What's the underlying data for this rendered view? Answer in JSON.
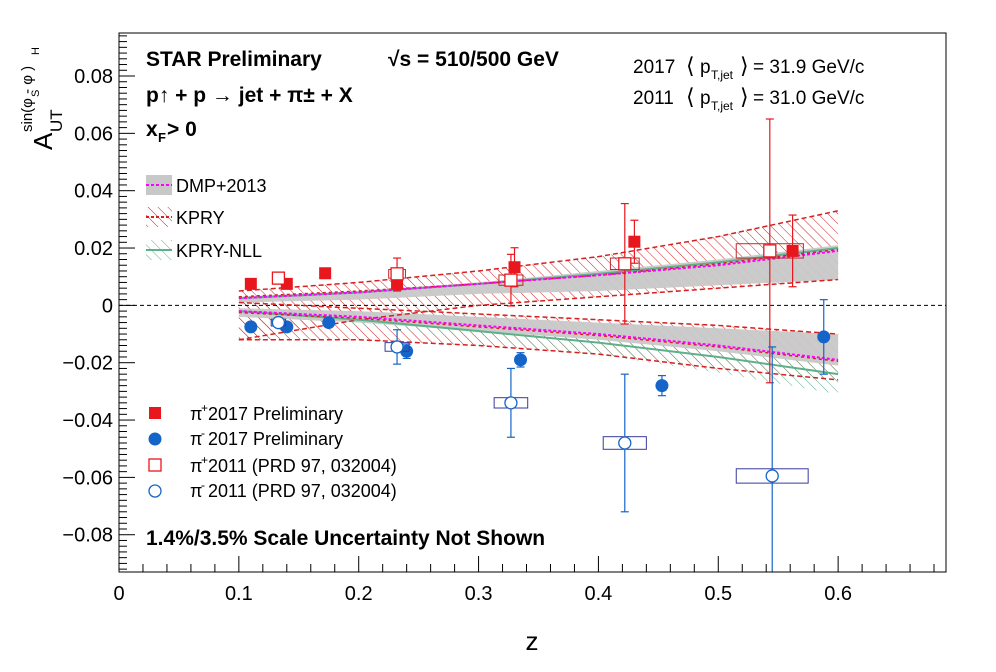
{
  "chart_data": {
    "type": "scatter",
    "xlabel": "z",
    "ylabel_main": "A",
    "ylabel_sub": "UT",
    "ylabel_sup": "sin(φ  - φ )",
    "ylabel_sup_s": "S",
    "ylabel_sup_h": "H",
    "xlim": [
      0,
      0.69
    ],
    "ylim": [
      -0.093,
      0.095
    ],
    "x_ticks": [
      0,
      0.1,
      0.2,
      0.3,
      0.4,
      0.5,
      0.6
    ],
    "x_tick_labels": [
      "0",
      "0.1",
      "0.2",
      "0.3",
      "0.4",
      "0.5",
      "0.6"
    ],
    "y_ticks": [
      -0.08,
      -0.06,
      -0.04,
      -0.02,
      0,
      0.02,
      0.04,
      0.06,
      0.08
    ],
    "y_tick_labels": [
      "−0.08",
      "−0.06",
      "−0.04",
      "−0.02",
      "0",
      "0.02",
      "0.04",
      "0.06",
      "0.08"
    ],
    "annotations": {
      "star": "STAR Preliminary",
      "sqrt_s": "√s = 510/500 GeV",
      "reaction": "p↑ + p → jet + π± + X",
      "xf": "x",
      "xf_sub": "F",
      "xf_rest": " > 0",
      "pt2017_year": "2017",
      "pt2017_value": "=  31.9 GeV/c",
      "pt2011_year": "2011",
      "pt2011_value": "=  31.0 GeV/c",
      "pt_symbol": "p",
      "pt_sub": "T,jet",
      "scale_note": "1.4%/3.5% Scale Uncertainty Not Shown"
    },
    "theory": [
      {
        "name": "DMP+2013",
        "color": "#ff00ff",
        "fill": "#c8c8c8"
      },
      {
        "name": "KPRY",
        "color": "#d42020"
      },
      {
        "name": "KPRY-NLL",
        "color": "#5cb08a"
      }
    ],
    "theory_bands": {
      "x": [
        0.1,
        0.2,
        0.3,
        0.4,
        0.5,
        0.6
      ],
      "pos": {
        "dmp": [
          0.0025,
          0.0045,
          0.0075,
          0.0105,
          0.014,
          0.019
        ],
        "dmp_lo": [
          0.001,
          0.002,
          0.004,
          0.005,
          0.007,
          0.009
        ],
        "dmp_hi": [
          0.003,
          0.005,
          0.008,
          0.012,
          0.016,
          0.021
        ],
        "kpry": [
          0.003,
          0.005,
          0.0075,
          0.0105,
          0.0145,
          0.0195
        ],
        "kpry_lo": [
          -0.012,
          -0.005,
          0.0,
          0.003,
          0.006,
          0.009
        ],
        "kpry_hi": [
          0.005,
          0.008,
          0.012,
          0.017,
          0.024,
          0.033
        ],
        "nll": [
          0.0025,
          0.0045,
          0.0075,
          0.011,
          0.015,
          0.02
        ]
      },
      "neg": {
        "dmp": [
          -0.002,
          -0.004,
          -0.007,
          -0.01,
          -0.014,
          -0.019
        ],
        "dmp_lo": [
          -0.004,
          -0.006,
          -0.009,
          -0.012,
          -0.016,
          -0.021
        ],
        "dmp_hi": [
          -0.001,
          -0.002,
          -0.004,
          -0.006,
          -0.008,
          -0.01
        ],
        "kpry": [
          -0.0025,
          -0.0045,
          -0.0075,
          -0.0105,
          -0.0145,
          -0.0195
        ],
        "kpry_lo": [
          -0.012,
          -0.012,
          -0.014,
          -0.017,
          -0.022,
          -0.026
        ],
        "kpry_hi": [
          0.001,
          -0.001,
          -0.003,
          -0.005,
          -0.007,
          -0.01
        ],
        "nll": [
          -0.002,
          -0.005,
          -0.009,
          -0.013,
          -0.018,
          -0.024
        ]
      }
    },
    "series": [
      {
        "name": "π+ 2017 Preliminary",
        "legend_main": "π",
        "legend_sup": "+",
        "legend_rest": " 2017 Preliminary",
        "marker": "square-filled",
        "color": "#e8171d",
        "x": [
          0.11,
          0.14,
          0.172,
          0.232,
          0.33,
          0.43,
          0.562
        ],
        "y": [
          0.0075,
          0.0075,
          0.0112,
          0.0075,
          0.0133,
          0.0222,
          0.019
        ],
        "err": [
          0.0015,
          0.0015,
          0.0015,
          0.0025,
          0.0068,
          0.0075,
          0.0125
        ]
      },
      {
        "name": "π- 2017 Preliminary",
        "legend_main": "π",
        "legend_sup": "-",
        "legend_rest": " 2017 Preliminary",
        "marker": "circle-filled",
        "color": "#1565c8",
        "x": [
          0.11,
          0.14,
          0.175,
          0.24,
          0.335,
          0.453,
          0.588
        ],
        "y": [
          -0.0075,
          -0.0075,
          -0.006,
          -0.016,
          -0.019,
          -0.028,
          -0.011
        ],
        "err": [
          0.0012,
          0.0012,
          0.0015,
          0.0025,
          0.0025,
          0.0035,
          0.013
        ]
      },
      {
        "name": "π+ 2011 (PRD 97, 032004)",
        "legend_main": "π",
        "legend_sup": "+",
        "legend_rest": " 2011 (PRD 97, 032004)",
        "marker": "square-open",
        "color": "#e8171d",
        "x": [
          0.133,
          0.232,
          0.327,
          0.422,
          0.543
        ],
        "y": [
          0.0095,
          0.011,
          0.0088,
          0.0145,
          0.019
        ],
        "err": [
          0.0015,
          0.0055,
          0.009,
          0.021,
          0.046
        ],
        "sys_halfwidth": [
          0.004,
          0.007,
          0.01,
          0.012,
          0.028
        ],
        "sys": [
          0.0012,
          0.0015,
          0.0018,
          0.002,
          0.0025
        ]
      },
      {
        "name": "π- 2011 (PRD 97, 032004)",
        "legend_main": "π",
        "legend_sup": "-",
        "legend_rest": " 2011 (PRD 97, 032004)",
        "marker": "circle-open",
        "color": "#1565c8",
        "x": [
          0.133,
          0.232,
          0.327,
          0.422,
          0.545
        ],
        "y": [
          -0.006,
          -0.0145,
          -0.034,
          -0.048,
          -0.0595
        ],
        "err": [
          0.0015,
          0.006,
          0.012,
          0.024,
          0.045
        ],
        "sys_halfwidth": [
          0.006,
          0.01,
          0.014,
          0.018,
          0.03
        ],
        "sys": [
          0.0012,
          0.0015,
          0.0018,
          0.0022,
          0.0025
        ]
      }
    ]
  }
}
